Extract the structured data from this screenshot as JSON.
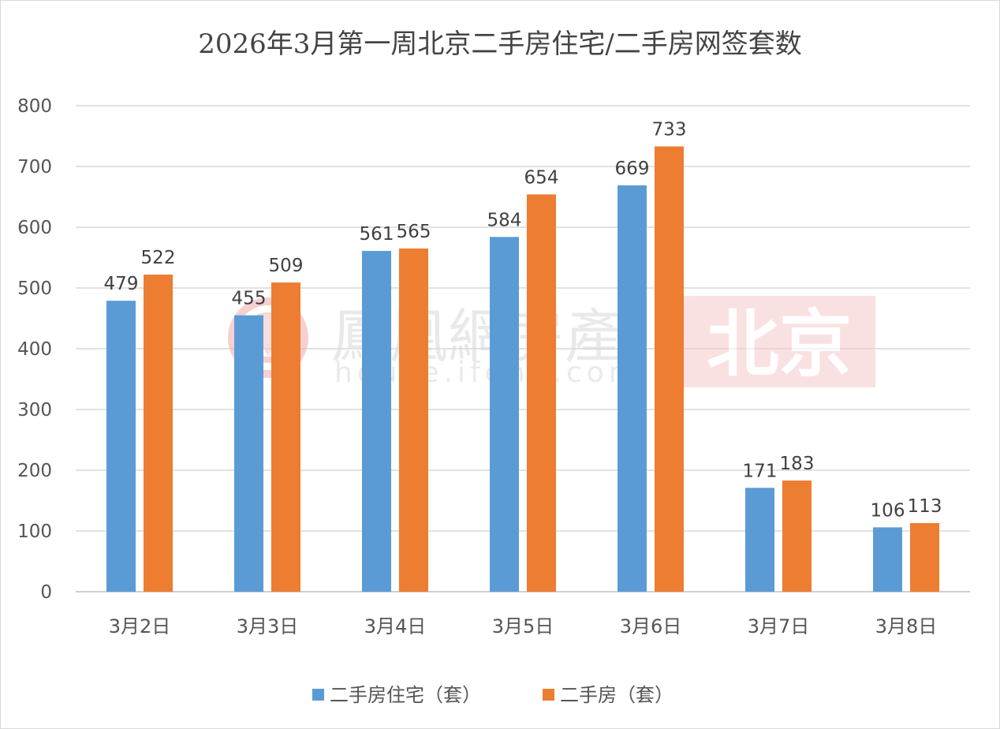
{
  "chart_data": {
    "type": "bar",
    "title": "2026年3月第一周北京二手房住宅/二手房网签套数",
    "categories": [
      "3月2日",
      "3月3日",
      "3月4日",
      "3月5日",
      "3月6日",
      "3月7日",
      "3月8日"
    ],
    "series": [
      {
        "name": "二手房住宅（套）",
        "color": "#5b9bd5",
        "values": [
          479,
          455,
          561,
          584,
          669,
          171,
          106
        ]
      },
      {
        "name": "二手房（套）",
        "color": "#ed7d31",
        "values": [
          522,
          509,
          565,
          654,
          733,
          183,
          113
        ]
      }
    ],
    "ylim": [
      0,
      800
    ],
    "yticks": [
      0,
      100,
      200,
      300,
      400,
      500,
      600,
      700,
      800
    ],
    "grid": true,
    "legend": "bottom",
    "data_labels": true
  },
  "watermark": {
    "brand": "鳳凰網房產",
    "url": "house.ifeng.com",
    "city": "北京",
    "icon": "phoenix-logo-icon"
  }
}
